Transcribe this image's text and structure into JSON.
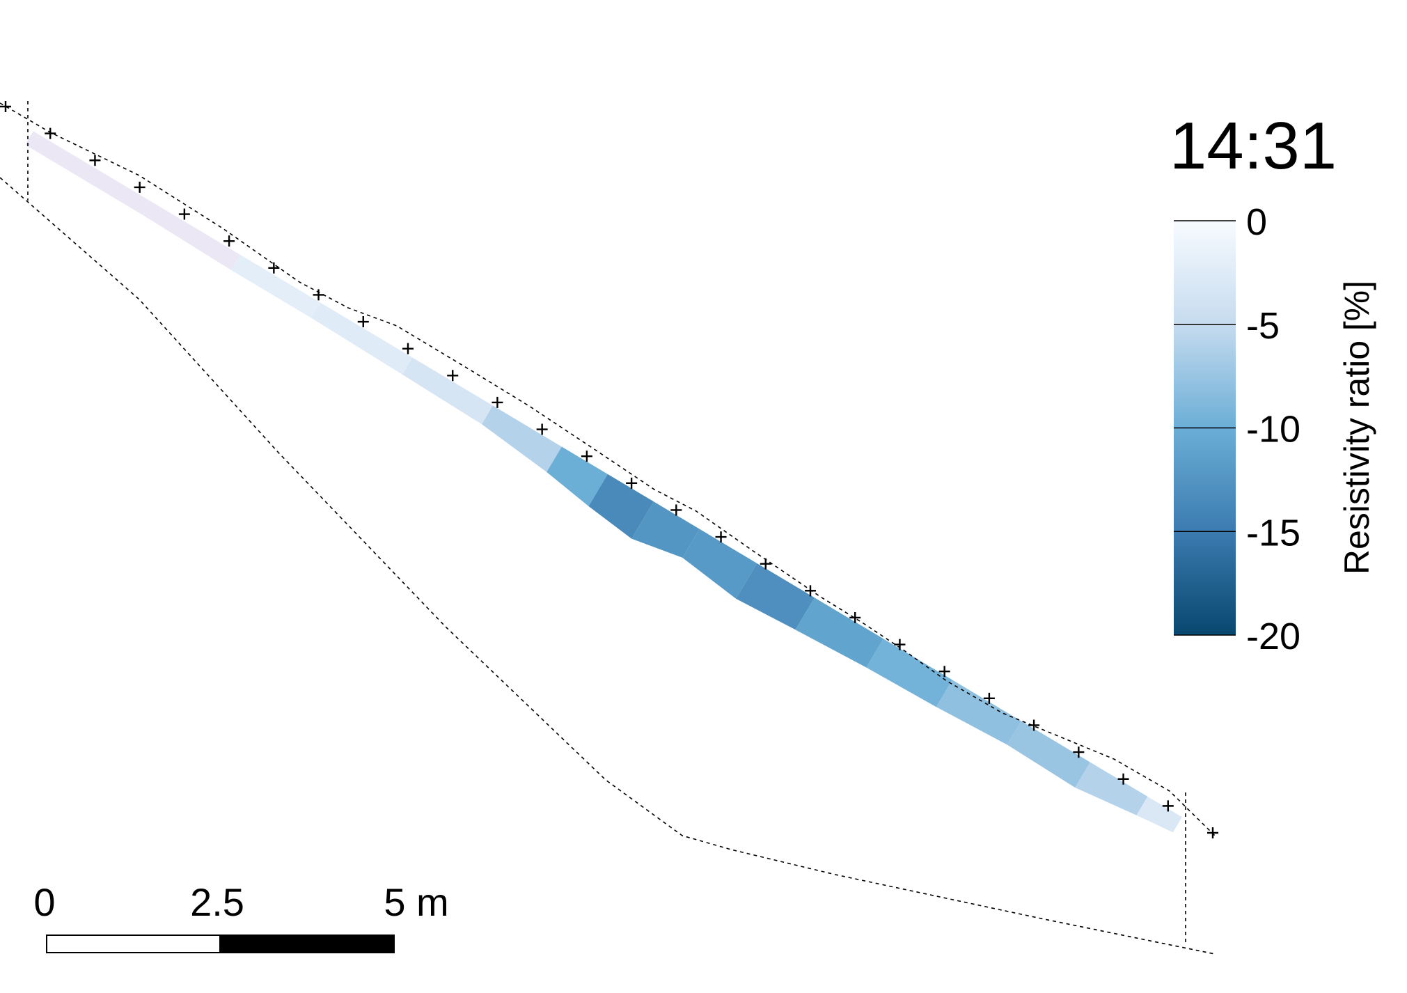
{
  "time_label": "14:31",
  "colorbar": {
    "label": "Resistivity ratio [%]",
    "ticks": [
      0,
      -5,
      -10,
      -15,
      -20
    ],
    "min": -20,
    "max": 0,
    "colors": {
      "high": "#f7fbff",
      "low": "#08476e",
      "light_tint": "#ebe7f5"
    }
  },
  "scalebar": {
    "labels": [
      "0",
      "2.5",
      "5 m"
    ]
  },
  "chart_data": {
    "type": "heatmap",
    "title": "14:31",
    "color_label": "Resistivity ratio [%]",
    "color_range": [
      -20,
      0
    ],
    "electrode_count": 28,
    "anomaly_profile": [
      {
        "position": 0.0,
        "value": -1
      },
      {
        "position": 0.1,
        "value": -1
      },
      {
        "position": 0.18,
        "value": -2
      },
      {
        "position": 0.25,
        "value": -2
      },
      {
        "position": 0.33,
        "value": -3
      },
      {
        "position": 0.4,
        "value": -4
      },
      {
        "position": 0.46,
        "value": -8
      },
      {
        "position": 0.5,
        "value": -12
      },
      {
        "position": 0.54,
        "value": -15
      },
      {
        "position": 0.58,
        "value": -10
      },
      {
        "position": 0.63,
        "value": -14
      },
      {
        "position": 0.68,
        "value": -12
      },
      {
        "position": 0.74,
        "value": -10
      },
      {
        "position": 0.8,
        "value": -9
      },
      {
        "position": 0.86,
        "value": -7
      },
      {
        "position": 0.92,
        "value": -8
      },
      {
        "position": 0.97,
        "value": -4
      },
      {
        "position": 1.0,
        "value": -2
      }
    ]
  }
}
